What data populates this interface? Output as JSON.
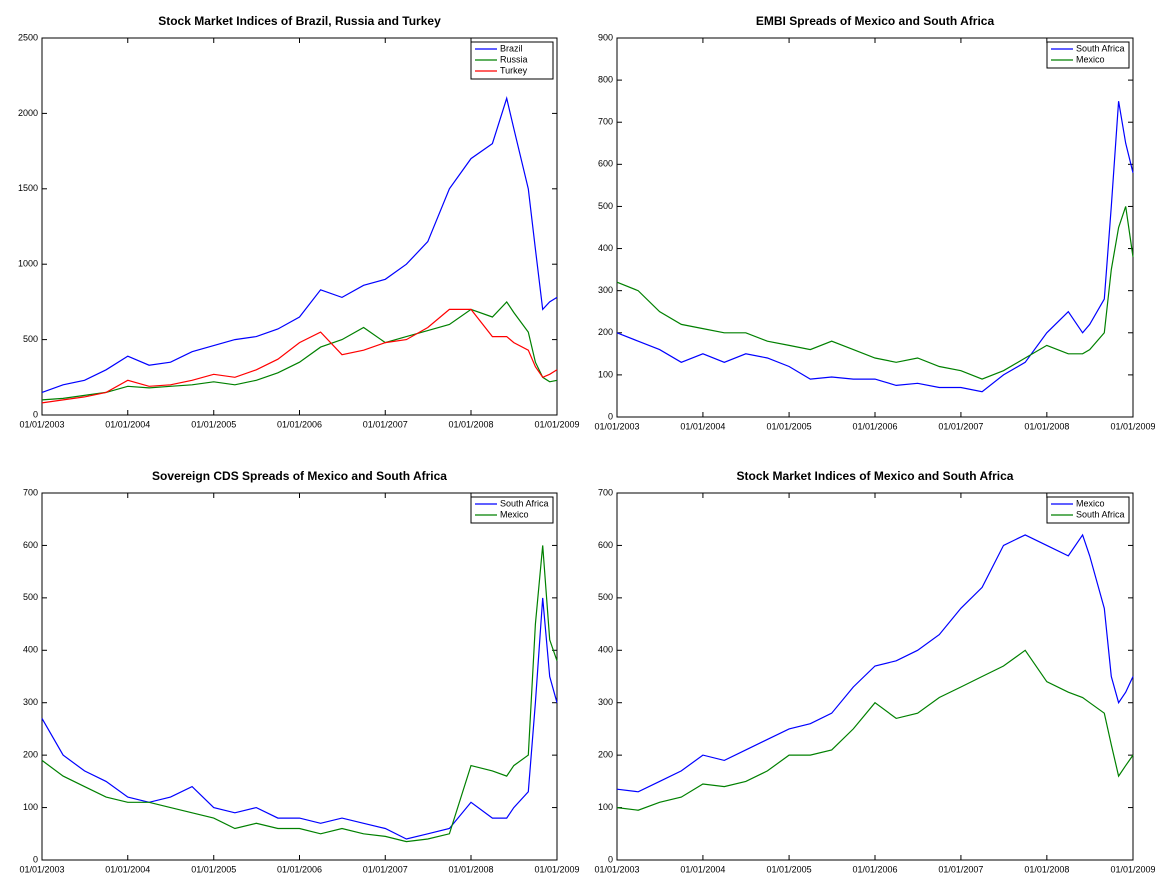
{
  "chart_data": [
    {
      "type": "line",
      "title": "Stock Market Indices of Brazil, Russia and Turkey",
      "x": [
        "01/01/2003",
        "04/01/2003",
        "07/01/2003",
        "10/01/2003",
        "01/01/2004",
        "04/01/2004",
        "07/01/2004",
        "10/01/2004",
        "01/01/2005",
        "04/01/2005",
        "07/01/2005",
        "10/01/2005",
        "01/01/2006",
        "04/01/2006",
        "07/01/2006",
        "10/01/2006",
        "01/01/2007",
        "04/01/2007",
        "07/01/2007",
        "10/01/2007",
        "01/01/2008",
        "04/01/2008",
        "06/01/2008",
        "07/01/2008",
        "09/01/2008",
        "10/01/2008",
        "11/01/2008",
        "12/01/2008",
        "01/01/2009"
      ],
      "series": [
        {
          "name": "Brazil",
          "color": "#0000ff",
          "values": [
            150,
            200,
            230,
            300,
            390,
            330,
            350,
            420,
            460,
            500,
            520,
            570,
            650,
            830,
            780,
            860,
            900,
            1000,
            1150,
            1500,
            1700,
            1800,
            2100,
            1900,
            1500,
            1100,
            700,
            750,
            780
          ]
        },
        {
          "name": "Russia",
          "color": "#008000",
          "values": [
            100,
            110,
            130,
            150,
            190,
            180,
            190,
            200,
            220,
            200,
            230,
            280,
            350,
            450,
            500,
            580,
            480,
            520,
            560,
            600,
            700,
            650,
            750,
            680,
            550,
            350,
            250,
            220,
            230
          ]
        },
        {
          "name": "Turkey",
          "color": "#ff0000",
          "values": [
            80,
            100,
            120,
            150,
            230,
            190,
            200,
            230,
            270,
            250,
            300,
            370,
            480,
            550,
            400,
            430,
            480,
            500,
            580,
            700,
            700,
            520,
            520,
            480,
            430,
            320,
            250,
            270,
            300
          ]
        }
      ],
      "xlim": [
        "01/01/2003",
        "01/01/2009"
      ],
      "xticks": [
        "01/01/2003",
        "01/01/2004",
        "01/01/2005",
        "01/01/2006",
        "01/01/2007",
        "01/01/2008",
        "01/01/2009"
      ],
      "ylim": [
        0,
        2500
      ],
      "yticks": [
        0,
        500,
        1000,
        1500,
        2000,
        2500
      ],
      "legend": "upper right"
    },
    {
      "type": "line",
      "title": "EMBI Spreads of Mexico and South Africa",
      "x": [
        "01/01/2003",
        "04/01/2003",
        "07/01/2003",
        "10/01/2003",
        "01/01/2004",
        "04/01/2004",
        "07/01/2004",
        "10/01/2004",
        "01/01/2005",
        "04/01/2005",
        "07/01/2005",
        "10/01/2005",
        "01/01/2006",
        "04/01/2006",
        "07/01/2006",
        "10/01/2006",
        "01/01/2007",
        "04/01/2007",
        "07/01/2007",
        "10/01/2007",
        "01/01/2008",
        "04/01/2008",
        "06/01/2008",
        "07/01/2008",
        "09/01/2008",
        "10/01/2008",
        "11/01/2008",
        "12/01/2008",
        "01/01/2009"
      ],
      "series": [
        {
          "name": "South Africa",
          "color": "#0000ff",
          "values": [
            200,
            180,
            160,
            130,
            150,
            130,
            150,
            140,
            120,
            90,
            95,
            90,
            90,
            75,
            80,
            70,
            70,
            60,
            100,
            130,
            200,
            250,
            200,
            220,
            280,
            500,
            750,
            650,
            580
          ]
        },
        {
          "name": "Mexico",
          "color": "#008000",
          "values": [
            320,
            300,
            250,
            220,
            210,
            200,
            200,
            180,
            170,
            160,
            180,
            160,
            140,
            130,
            140,
            120,
            110,
            90,
            110,
            140,
            170,
            150,
            150,
            160,
            200,
            350,
            450,
            500,
            380
          ]
        }
      ],
      "xlim": [
        "01/01/2003",
        "01/01/2009"
      ],
      "xticks": [
        "01/01/2003",
        "01/01/2004",
        "01/01/2005",
        "01/01/2006",
        "01/01/2007",
        "01/01/2008",
        "01/01/2009"
      ],
      "ylim": [
        0,
        900
      ],
      "yticks": [
        0,
        100,
        200,
        300,
        400,
        500,
        600,
        700,
        800,
        900
      ],
      "legend": "upper right"
    },
    {
      "type": "line",
      "title": "Sovereign CDS Spreads of Mexico and South Africa",
      "x": [
        "01/01/2003",
        "04/01/2003",
        "07/01/2003",
        "10/01/2003",
        "01/01/2004",
        "04/01/2004",
        "07/01/2004",
        "10/01/2004",
        "01/01/2005",
        "04/01/2005",
        "07/01/2005",
        "10/01/2005",
        "01/01/2006",
        "04/01/2006",
        "07/01/2006",
        "10/01/2006",
        "01/01/2007",
        "04/01/2007",
        "07/01/2007",
        "10/01/2007",
        "01/01/2008",
        "04/01/2008",
        "06/01/2008",
        "07/01/2008",
        "09/01/2008",
        "10/01/2008",
        "11/01/2008",
        "12/01/2008",
        "01/01/2009"
      ],
      "series": [
        {
          "name": "South Africa",
          "color": "#0000ff",
          "values": [
            270,
            200,
            170,
            150,
            120,
            110,
            120,
            140,
            100,
            90,
            100,
            80,
            80,
            70,
            80,
            70,
            60,
            40,
            50,
            60,
            110,
            80,
            80,
            100,
            130,
            300,
            500,
            350,
            300
          ]
        },
        {
          "name": "Mexico",
          "color": "#008000",
          "values": [
            190,
            160,
            140,
            120,
            110,
            110,
            100,
            90,
            80,
            60,
            70,
            60,
            60,
            50,
            60,
            50,
            45,
            35,
            40,
            50,
            180,
            170,
            160,
            180,
            200,
            450,
            600,
            420,
            380
          ]
        }
      ],
      "xlim": [
        "01/01/2003",
        "01/01/2009"
      ],
      "xticks": [
        "01/01/2003",
        "01/01/2004",
        "01/01/2005",
        "01/01/2006",
        "01/01/2007",
        "01/01/2008",
        "01/01/2009"
      ],
      "ylim": [
        0,
        700
      ],
      "yticks": [
        0,
        100,
        200,
        300,
        400,
        500,
        600,
        700
      ],
      "legend": "upper right"
    },
    {
      "type": "line",
      "title": "Stock Market Indices of Mexico and South Africa",
      "x": [
        "01/01/2003",
        "04/01/2003",
        "07/01/2003",
        "10/01/2003",
        "01/01/2004",
        "04/01/2004",
        "07/01/2004",
        "10/01/2004",
        "01/01/2005",
        "04/01/2005",
        "07/01/2005",
        "10/01/2005",
        "01/01/2006",
        "04/01/2006",
        "07/01/2006",
        "10/01/2006",
        "01/01/2007",
        "04/01/2007",
        "07/01/2007",
        "10/01/2007",
        "01/01/2008",
        "04/01/2008",
        "06/01/2008",
        "07/01/2008",
        "09/01/2008",
        "10/01/2008",
        "11/01/2008",
        "12/01/2008",
        "01/01/2009"
      ],
      "series": [
        {
          "name": "Mexico",
          "color": "#0000ff",
          "values": [
            135,
            130,
            150,
            170,
            200,
            190,
            210,
            230,
            250,
            260,
            280,
            330,
            370,
            380,
            400,
            430,
            480,
            520,
            600,
            620,
            600,
            580,
            620,
            580,
            480,
            350,
            300,
            320,
            350
          ]
        },
        {
          "name": "South Africa",
          "color": "#008000",
          "values": [
            100,
            95,
            110,
            120,
            145,
            140,
            150,
            170,
            200,
            200,
            210,
            250,
            300,
            270,
            280,
            310,
            330,
            350,
            370,
            400,
            340,
            320,
            310,
            300,
            280,
            220,
            160,
            180,
            200
          ]
        }
      ],
      "xlim": [
        "01/01/2003",
        "01/01/2009"
      ],
      "xticks": [
        "01/01/2003",
        "01/01/2004",
        "01/01/2005",
        "01/01/2006",
        "01/01/2007",
        "01/01/2008",
        "01/01/2009"
      ],
      "ylim": [
        0,
        700
      ],
      "yticks": [
        0,
        100,
        200,
        300,
        400,
        500,
        600,
        700
      ],
      "legend": "upper right"
    }
  ]
}
